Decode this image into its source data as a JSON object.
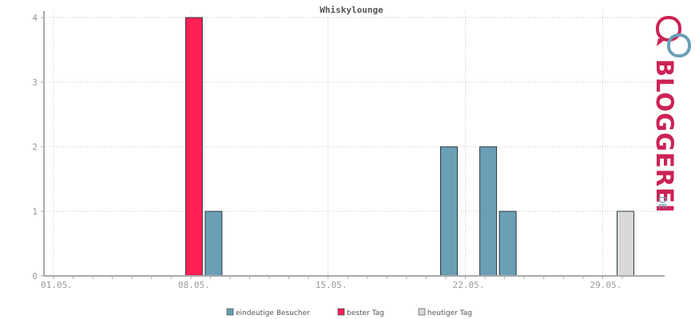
{
  "chart_data": {
    "type": "bar",
    "title": "Whiskylounge",
    "xlabel": "",
    "ylabel": "",
    "ylim": [
      0,
      4
    ],
    "y_ticks": [
      "0",
      "1",
      "2",
      "3",
      "4"
    ],
    "x_tick_labels": [
      "01.05.",
      "08.05.",
      "15.05.",
      "22.05.",
      "29.05."
    ],
    "grid": true,
    "legend_position": "bottom",
    "day_range": [
      1,
      30
    ],
    "series": [
      {
        "name": "eindeutige Besucher",
        "color": "#6a9fb5",
        "points": [
          {
            "day": "09.05.",
            "value": 1
          },
          {
            "day": "21.05.",
            "value": 2
          },
          {
            "day": "23.05.",
            "value": 2
          },
          {
            "day": "24.05.",
            "value": 1
          }
        ]
      },
      {
        "name": "bester Tag",
        "color": "#ff1f55",
        "points": [
          {
            "day": "08.05.",
            "value": 4
          }
        ]
      },
      {
        "name": "heutiger Tag",
        "color": "#d9d9d9",
        "points": [
          {
            "day": "30.05.",
            "value": 1
          }
        ]
      }
    ]
  },
  "logo": {
    "text": "BLOGGEREI",
    "suffix": ".DE",
    "color_primary": "#cc2255",
    "color_secondary": "#6a9fb5"
  }
}
